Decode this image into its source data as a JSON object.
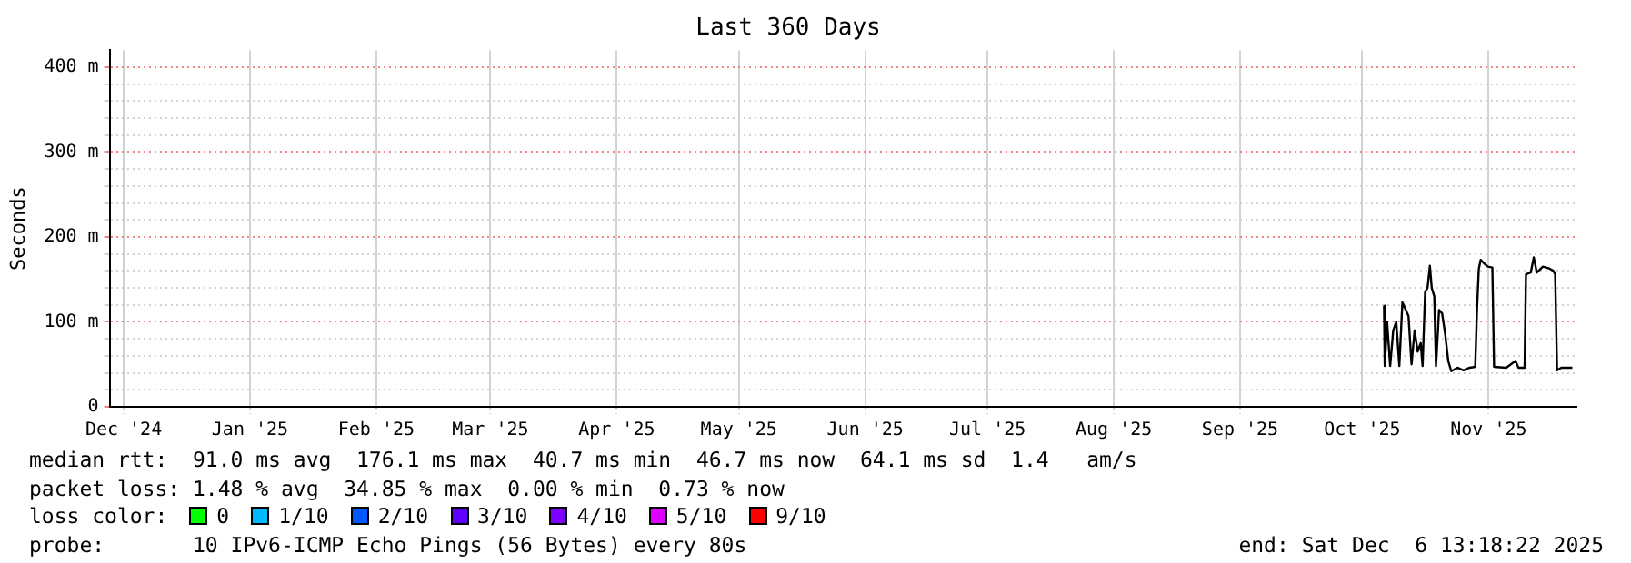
{
  "chart_data": {
    "type": "line",
    "title": "Last 360 Days",
    "ylabel": "Seconds",
    "x": [
      "2025-10-20T08:00",
      "2025-10-20T12:00",
      "2025-10-21T02:00",
      "2025-10-21T20:00",
      "2025-10-22T14:00",
      "2025-10-23T08:00",
      "2025-10-24T02:00",
      "2025-10-24T20:00",
      "2025-10-25T14:00",
      "2025-10-26T08:00",
      "2025-10-27T02:00",
      "2025-10-27T20:00",
      "2025-10-28T14:00",
      "2025-10-29T08:00",
      "2025-10-29T19:00",
      "2025-10-30T10:00",
      "2025-10-31T00:00",
      "2025-10-31T14:00",
      "2025-11-01T01:00",
      "2025-11-01T16:00",
      "2025-11-02T02:00",
      "2025-11-02T20:00",
      "2025-11-03T14:00",
      "2025-11-04T08:00",
      "2025-11-05T02:00",
      "2025-11-05T20:00",
      "2025-11-07T08:00",
      "2025-11-08T20:00",
      "2025-11-10T08:00",
      "2025-11-11T17:00",
      "2025-11-12T04:00",
      "2025-11-12T14:00",
      "2025-11-13T01:00",
      "2025-11-14T02:00",
      "2025-11-14T20:00",
      "2025-11-15T22:00",
      "2025-11-16T08:00",
      "2025-11-19T08:00",
      "2025-11-21T14:00",
      "2025-11-22T08:00",
      "2025-11-23T20:00",
      "2025-11-24T04:00",
      "2025-11-25T08:00",
      "2025-11-26T02:00",
      "2025-11-26T20:00",
      "2025-11-28T08:00",
      "2025-11-29T20:00",
      "2025-11-30T22:00",
      "2025-12-01T08:00",
      "2025-12-01T19:00",
      "2025-12-02T20:00",
      "2025-12-05T13:00"
    ],
    "series": [
      {
        "color": "#000000",
        "values": [
          119,
          48,
          100,
          48,
          90,
          100,
          48,
          123,
          115,
          107,
          50,
          90,
          65,
          75,
          48,
          135,
          140,
          166,
          140,
          130,
          48,
          114,
          110,
          86,
          54,
          42,
          46,
          43,
          46,
          47,
          117,
          162,
          173,
          168,
          165,
          164,
          47,
          46,
          54,
          46,
          46,
          156,
          158,
          176,
          158,
          165,
          163,
          160,
          156,
          43,
          46,
          46
        ]
      }
    ],
    "xlim": [
      "2024-12-11T13:18",
      "2025-12-06T13:18"
    ],
    "xticks": [
      {
        "value": "2024-12-15",
        "label": "Dec '24"
      },
      {
        "value": "2025-01-15",
        "label": "Jan '25"
      },
      {
        "value": "2025-02-15",
        "label": "Feb '25"
      },
      {
        "value": "2025-03-15",
        "label": "Mar '25"
      },
      {
        "value": "2025-04-15",
        "label": "Apr '25"
      },
      {
        "value": "2025-05-15",
        "label": "May '25"
      },
      {
        "value": "2025-06-15",
        "label": "Jun '25"
      },
      {
        "value": "2025-07-15",
        "label": "Jul '25"
      },
      {
        "value": "2025-08-15",
        "label": "Aug '25"
      },
      {
        "value": "2025-09-15",
        "label": "Sep '25"
      },
      {
        "value": "2025-10-15",
        "label": "Oct '25"
      },
      {
        "value": "2025-11-15",
        "label": "Nov '25"
      }
    ],
    "ylim": [
      0,
      420
    ],
    "yticks": [
      0,
      {
        "value": 20,
        "label": null
      },
      {
        "value": 40,
        "label": null
      },
      {
        "value": 60,
        "label": null
      },
      {
        "value": 80,
        "label": null
      },
      {
        "value": 100,
        "label": "100 m"
      },
      {
        "value": 120,
        "label": null
      },
      {
        "value": 140,
        "label": null
      },
      {
        "value": 160,
        "label": null
      },
      {
        "value": 180,
        "label": null
      },
      {
        "value": 200,
        "label": "200 m"
      },
      {
        "value": 220,
        "label": null
      },
      {
        "value": 240,
        "label": null
      },
      {
        "value": 260,
        "label": null
      },
      {
        "value": 280,
        "label": null
      },
      {
        "value": 300,
        "label": "300 m"
      },
      {
        "value": 320,
        "label": null
      },
      {
        "value": 340,
        "label": null
      },
      {
        "value": 360,
        "label": null
      },
      {
        "value": 380,
        "label": null
      },
      {
        "value": 400,
        "label": "400 m"
      }
    ],
    "grid": true,
    "legend": false,
    "marker": "none",
    "line_style": "solid",
    "annotations": [
      "median rtt:  91.0 ms avg  176.1 ms max  40.7 ms min  46.7 ms now  64.1 ms sd  1.4   am/s",
      "packet loss: 1.48 % avg  34.85 % max  0.00 % min  0.73 % now",
      "loss color:",
      "0",
      "1/10",
      "2/10",
      "3/10",
      "4/10",
      "5/10",
      "9/10",
      "probe:       10 IPv6-ICMP Echo Pings (56 Bytes) every 80s",
      "end: Sat Dec  6 13:18:22 2025"
    ]
  }
}
